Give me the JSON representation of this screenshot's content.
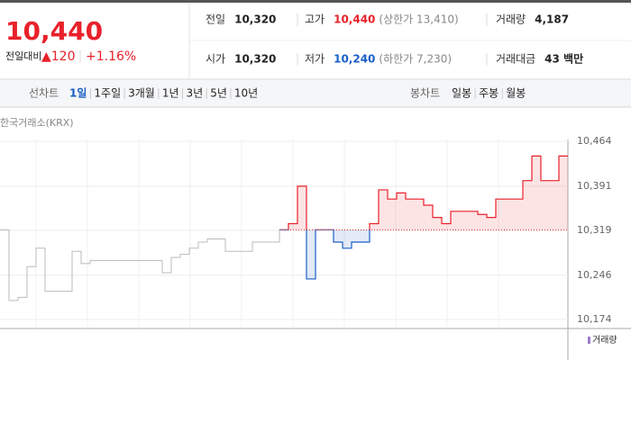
{
  "quote": {
    "price": "10,440",
    "change_label": "전일대비",
    "change": "▲120",
    "change_rate": "+1.16%"
  },
  "summary": [
    [
      {
        "label": "전일",
        "value": "10,320"
      },
      {
        "label": "고가",
        "value": "10,440",
        "note": "(상한가 13,410)"
      },
      {
        "label": "거래량",
        "value": "4,187"
      }
    ],
    [
      {
        "label": "시가",
        "value": "10,320"
      },
      {
        "label": "저가",
        "value": "10,240",
        "note": "(하한가 7,230)"
      },
      {
        "label": "거래대금",
        "value": "43 백만"
      }
    ]
  ],
  "tabs": {
    "line_label": "선차트",
    "line_tabs": [
      "1일",
      "1주일",
      "3개월",
      "1년",
      "3년",
      "5년",
      "10년"
    ],
    "selected": 0,
    "candle_label": "봉차트",
    "candle_tabs": [
      "일봉",
      "주봉",
      "월봉"
    ]
  },
  "chart_data": {
    "type": "line",
    "source": "한국거래소(KRX)",
    "legend": "거래량",
    "ylim": [
      10174,
      10464
    ],
    "yticks": [
      {
        "value": 10174,
        "label": "10,174"
      },
      {
        "value": 10246,
        "label": "10,246"
      },
      {
        "value": 10319,
        "label": "10,319"
      },
      {
        "value": 10391,
        "label": "10,391"
      },
      {
        "value": 10464,
        "label": "10,464"
      }
    ],
    "baseline": 10320,
    "up_color": "#e8212a",
    "down_color": "#1a5ec9",
    "grid": true,
    "series": [
      {
        "color": "#bbbbbb",
        "values": [
          10320,
          10205,
          10210,
          10260,
          10290,
          10220,
          10220,
          10220,
          10285,
          10265,
          10270,
          10270,
          10270,
          10270,
          10270,
          10270,
          10270,
          10270,
          10250,
          10275,
          10280,
          10290,
          10300,
          10305,
          10305,
          10285,
          10285,
          10285,
          10300,
          10300,
          10300,
          10320,
          null,
          null,
          null,
          null,
          null,
          null,
          null,
          null,
          null,
          null,
          null,
          null,
          null,
          null,
          null,
          null,
          null,
          null,
          null,
          null,
          null,
          null,
          null,
          null,
          null,
          null,
          null,
          null,
          null,
          null,
          null,
          null
        ]
      },
      {
        "color": "split",
        "values": [
          null,
          null,
          null,
          null,
          null,
          null,
          null,
          null,
          null,
          null,
          null,
          null,
          null,
          null,
          null,
          null,
          null,
          null,
          null,
          null,
          null,
          null,
          null,
          null,
          null,
          null,
          null,
          null,
          null,
          null,
          null,
          10320,
          10330,
          10391,
          10240,
          10320,
          10320,
          10300,
          10290,
          10300,
          10300,
          10330,
          10385,
          10370,
          10380,
          10370,
          10370,
          10360,
          10340,
          10330,
          10350,
          10350,
          10350,
          10345,
          10340,
          10370,
          10370,
          10370,
          10400,
          10440,
          10400,
          10400,
          10440,
          10440
        ]
      }
    ]
  }
}
